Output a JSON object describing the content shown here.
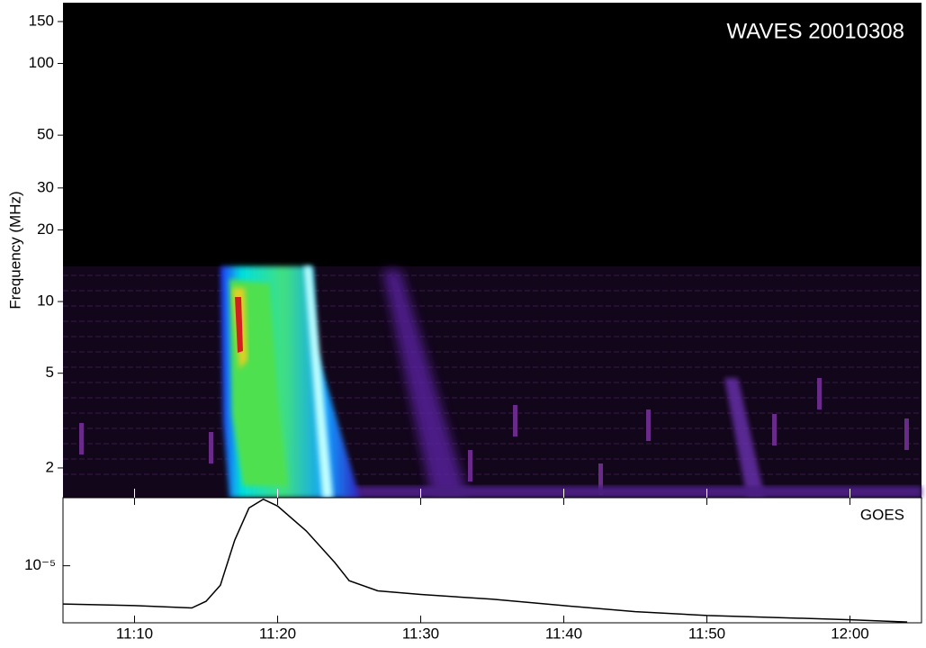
{
  "chart_data": [
    {
      "type": "spectrogram",
      "title": "WAVES 20010308",
      "y_label": "Frequency (MHz)",
      "log_y": true,
      "ylim": [
        1.5,
        180
      ],
      "yticks": [
        2,
        5,
        10,
        20,
        30,
        50,
        100,
        150
      ]
    },
    {
      "type": "line",
      "title": "GOES",
      "log_y": true,
      "x": [
        "11:05",
        "11:10",
        "11:14",
        "11:15",
        "11:16",
        "11:17",
        "11:18",
        "11:19",
        "11:20",
        "11:22",
        "11:24",
        "11:25",
        "11:27",
        "11:30",
        "11:35",
        "11:40",
        "11:45",
        "11:50",
        "11:55",
        "12:00",
        "12:04"
      ],
      "series": [
        {
          "color": "#000000",
          "values": [
            4.95e-06,
            4.8e-06,
            4.6e-06,
            5.2e-06,
            7e-06,
            1.6e-05,
            2.9e-05,
            3.4e-05,
            3e-05,
            1.9e-05,
            1.06e-05,
            7.6e-06,
            6.3e-06,
            5.9e-06,
            5.4e-06,
            4.8e-06,
            4.3e-06,
            4e-06,
            3.85e-06,
            3.7e-06,
            3.55e-06
          ]
        }
      ],
      "xlim": [
        "11:05",
        "12:05"
      ],
      "xticks": [
        "11:10",
        "11:20",
        "11:30",
        "11:40",
        "11:50",
        "12:00"
      ],
      "ylim": [
        3.5e-06,
        3.5e-05
      ],
      "yticks": [
        {
          "value": 1e-05,
          "label": "10⁻⁵"
        }
      ]
    }
  ]
}
